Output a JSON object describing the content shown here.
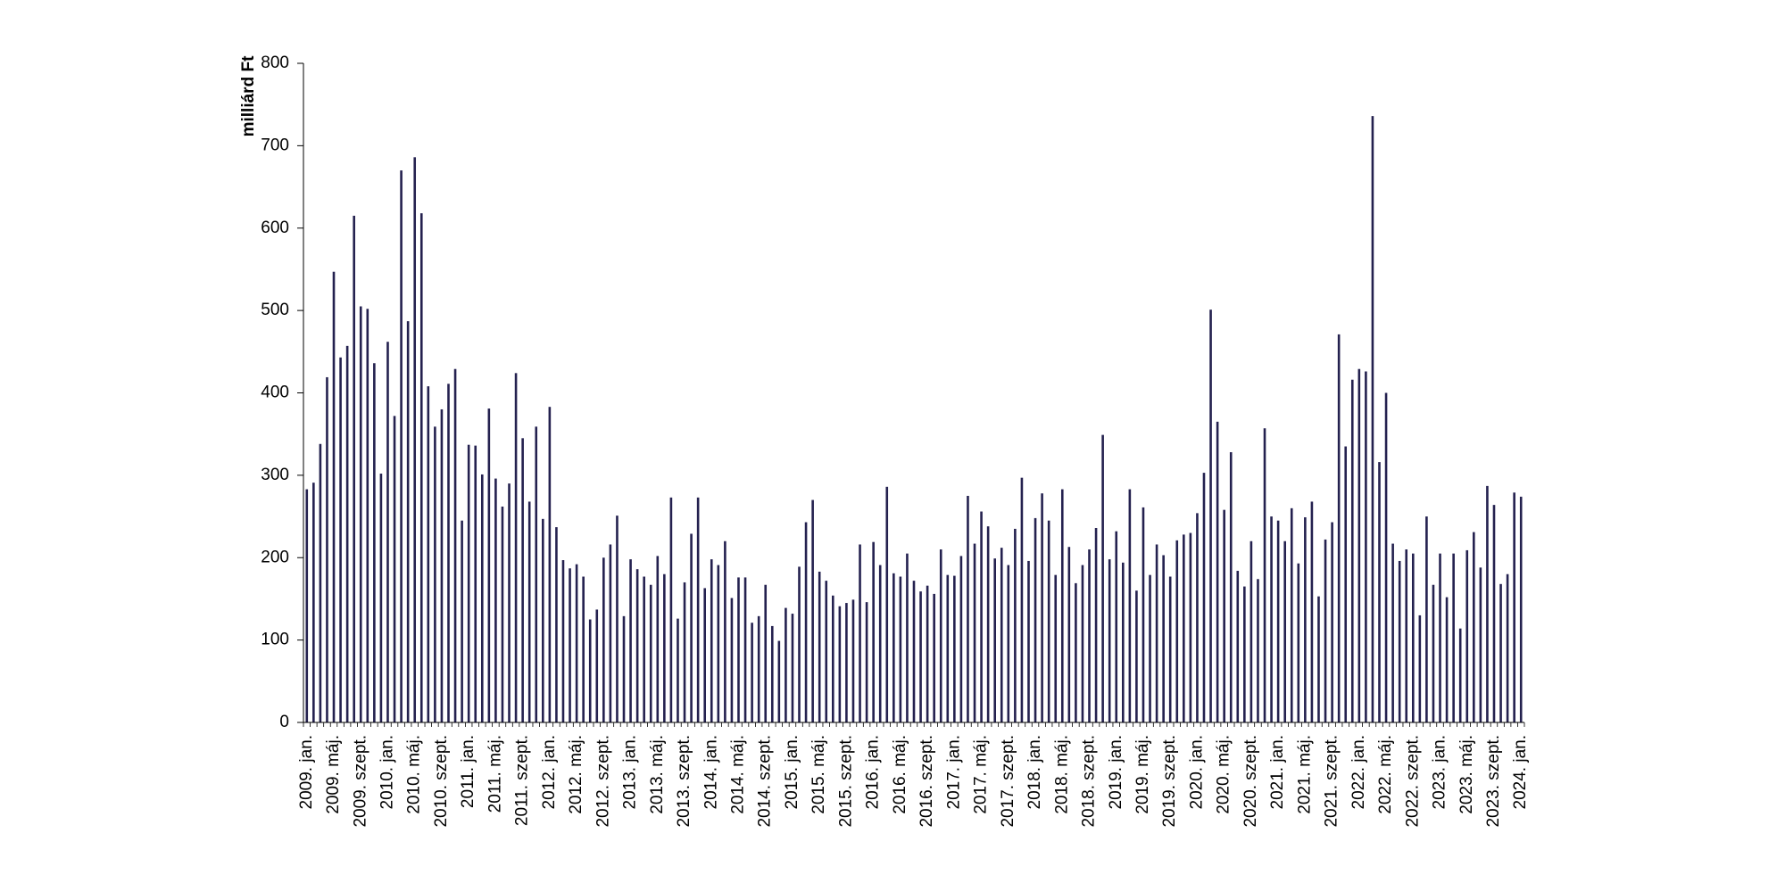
{
  "chart_data": {
    "type": "bar",
    "title": "",
    "xlabel": "",
    "ylabel": "milliárd Ft",
    "ylim": [
      0,
      800
    ],
    "yticks": [
      0,
      100,
      200,
      300,
      400,
      500,
      600,
      700,
      800
    ],
    "grid": false,
    "legend": "none",
    "bar_color": "#24214f",
    "x_labels": [
      {
        "index": 0,
        "label": "2009. jan."
      },
      {
        "index": 4,
        "label": "2009. máj."
      },
      {
        "index": 8,
        "label": "2009. szept."
      },
      {
        "index": 12,
        "label": "2010. jan."
      },
      {
        "index": 16,
        "label": "2010. máj."
      },
      {
        "index": 20,
        "label": "2010. szept."
      },
      {
        "index": 24,
        "label": "2011. jan."
      },
      {
        "index": 28,
        "label": "2011. máj."
      },
      {
        "index": 32,
        "label": "2011. szept."
      },
      {
        "index": 36,
        "label": "2012. jan."
      },
      {
        "index": 40,
        "label": "2012. máj."
      },
      {
        "index": 44,
        "label": "2012. szept."
      },
      {
        "index": 48,
        "label": "2013. jan."
      },
      {
        "index": 52,
        "label": "2013. máj."
      },
      {
        "index": 56,
        "label": "2013. szept."
      },
      {
        "index": 60,
        "label": "2014. jan."
      },
      {
        "index": 64,
        "label": "2014. máj."
      },
      {
        "index": 68,
        "label": "2014. szept."
      },
      {
        "index": 72,
        "label": "2015. jan."
      },
      {
        "index": 76,
        "label": "2015. máj."
      },
      {
        "index": 80,
        "label": "2015. szept."
      },
      {
        "index": 84,
        "label": "2016. jan."
      },
      {
        "index": 88,
        "label": "2016. máj."
      },
      {
        "index": 92,
        "label": "2016. szept."
      },
      {
        "index": 96,
        "label": "2017. jan."
      },
      {
        "index": 100,
        "label": "2017. máj."
      },
      {
        "index": 104,
        "label": "2017. szept."
      },
      {
        "index": 108,
        "label": "2018. jan."
      },
      {
        "index": 112,
        "label": "2018. máj."
      },
      {
        "index": 116,
        "label": "2018. szept."
      },
      {
        "index": 120,
        "label": "2019. jan."
      },
      {
        "index": 124,
        "label": "2019. máj."
      },
      {
        "index": 128,
        "label": "2019. szept."
      },
      {
        "index": 132,
        "label": "2020. jan."
      },
      {
        "index": 136,
        "label": "2020. máj."
      },
      {
        "index": 140,
        "label": "2020. szept."
      },
      {
        "index": 144,
        "label": "2021. jan."
      },
      {
        "index": 148,
        "label": "2021. máj."
      },
      {
        "index": 152,
        "label": "2021. szept."
      },
      {
        "index": 156,
        "label": "2022. jan."
      },
      {
        "index": 160,
        "label": "2022. máj."
      },
      {
        "index": 164,
        "label": "2022. szept."
      },
      {
        "index": 168,
        "label": "2023. jan."
      },
      {
        "index": 172,
        "label": "2023. máj."
      },
      {
        "index": 176,
        "label": "2023. szept."
      },
      {
        "index": 180,
        "label": "2024. jan."
      }
    ],
    "values": [
      283,
      291,
      338,
      419,
      547,
      443,
      457,
      615,
      505,
      502,
      436,
      302,
      462,
      372,
      670,
      487,
      686,
      618,
      408,
      359,
      380,
      411,
      429,
      245,
      337,
      336,
      301,
      381,
      296,
      262,
      290,
      424,
      345,
      268,
      359,
      247,
      383,
      237,
      197,
      187,
      192,
      177,
      125,
      137,
      200,
      216,
      251,
      129,
      198,
      186,
      177,
      167,
      202,
      180,
      273,
      126,
      170,
      229,
      273,
      163,
      198,
      191,
      220,
      151,
      176,
      176,
      121,
      129,
      167,
      117,
      99,
      139,
      132,
      189,
      243,
      270,
      183,
      172,
      154,
      141,
      145,
      149,
      216,
      146,
      219,
      191,
      286,
      181,
      177,
      205,
      172,
      159,
      166,
      156,
      210,
      179,
      178,
      202,
      275,
      217,
      256,
      238,
      199,
      212,
      191,
      235,
      297,
      196,
      248,
      278,
      245,
      179,
      283,
      213,
      169,
      191,
      210,
      236,
      349,
      198,
      232,
      194,
      283,
      160,
      261,
      179,
      216,
      203,
      177,
      221,
      228,
      230,
      254,
      303,
      501,
      365,
      258,
      328,
      184,
      165,
      220,
      174,
      357,
      250,
      245,
      220,
      260,
      193,
      249,
      268,
      153,
      222,
      243,
      471,
      335,
      416,
      429,
      426,
      736,
      316,
      400,
      217,
      196,
      210,
      205,
      130,
      250,
      167,
      205,
      152,
      205,
      114,
      209,
      231,
      188,
      287,
      264,
      168,
      180,
      279,
      274
    ]
  }
}
